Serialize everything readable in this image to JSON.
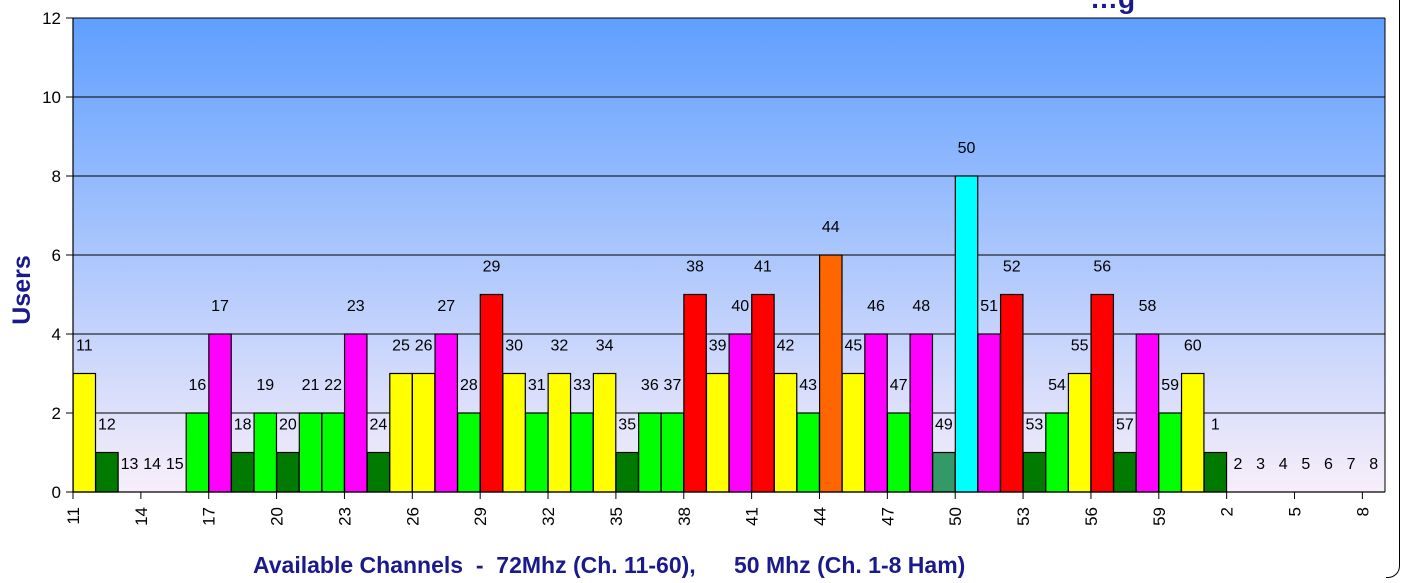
{
  "chart_data": {
    "type": "bar",
    "title": "…g",
    "xlabel": "Available Channels  -  72Mhz (Ch. 11-60),      50 Mhz (Ch. 1-8 Ham)",
    "ylabel": "Users",
    "ylim": [
      0,
      12
    ],
    "yticks": [
      0,
      2,
      4,
      6,
      8,
      10,
      12
    ],
    "grid": true,
    "categories": [
      "11",
      "12",
      "13",
      "14",
      "15",
      "16",
      "17",
      "18",
      "19",
      "20",
      "21",
      "22",
      "23",
      "24",
      "25",
      "26",
      "27",
      "28",
      "29",
      "30",
      "31",
      "32",
      "33",
      "34",
      "35",
      "36",
      "37",
      "38",
      "39",
      "40",
      "41",
      "42",
      "43",
      "44",
      "45",
      "46",
      "47",
      "48",
      "49",
      "50",
      "51",
      "52",
      "53",
      "54",
      "55",
      "56",
      "57",
      "58",
      "59",
      "60",
      "1",
      "2",
      "3",
      "4",
      "5",
      "6",
      "7",
      "8"
    ],
    "x_tick_labels": [
      "11",
      "14",
      "17",
      "20",
      "23",
      "26",
      "29",
      "32",
      "35",
      "38",
      "41",
      "44",
      "47",
      "50",
      "53",
      "56",
      "59",
      "2",
      "5",
      "8"
    ],
    "values": [
      3,
      1,
      0,
      0,
      0,
      2,
      4,
      1,
      2,
      1,
      2,
      2,
      4,
      1,
      3,
      3,
      4,
      2,
      5,
      3,
      2,
      3,
      2,
      3,
      1,
      2,
      2,
      5,
      3,
      4,
      5,
      3,
      2,
      6,
      3,
      4,
      2,
      4,
      1,
      8,
      4,
      5,
      1,
      2,
      3,
      5,
      1,
      4,
      2,
      3,
      1,
      0,
      0,
      0,
      0,
      0,
      0,
      0
    ],
    "colors": [
      "#ffff00",
      "#007a00",
      "#00ff00",
      "#00ff00",
      "#00ff00",
      "#00ff00",
      "#ff00ff",
      "#007a00",
      "#00ff00",
      "#007a00",
      "#00ff00",
      "#00ff00",
      "#ff00ff",
      "#007a00",
      "#ffff00",
      "#ffff00",
      "#ff00ff",
      "#00ff00",
      "#ff0000",
      "#ffff00",
      "#00ff00",
      "#ffff00",
      "#00ff00",
      "#ffff00",
      "#007a00",
      "#00ff00",
      "#00ff00",
      "#ff0000",
      "#ffff00",
      "#ff00ff",
      "#ff0000",
      "#ffff00",
      "#00ff00",
      "#ff6600",
      "#ffff00",
      "#ff00ff",
      "#00ff00",
      "#ff00ff",
      "#339966",
      "#00ffff",
      "#ff00ff",
      "#ff0000",
      "#007a00",
      "#00ff00",
      "#ffff00",
      "#ff0000",
      "#007a00",
      "#ff00ff",
      "#00ff00",
      "#ffff00",
      "#007a00",
      "#007a00",
      "#007a00",
      "#007a00",
      "#007a00",
      "#007a00",
      "#007a00",
      "#007a00"
    ],
    "background_gradient": [
      "#5f9fff",
      "#f8eefa"
    ]
  }
}
